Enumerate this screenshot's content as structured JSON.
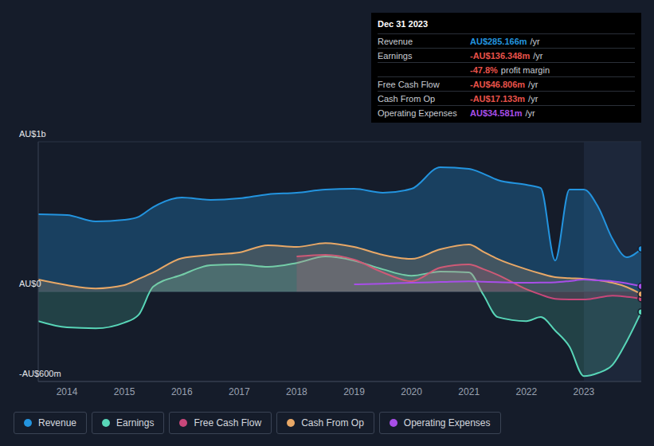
{
  "chart_data": {
    "type": "area",
    "x": [
      2013.5,
      2014,
      2014.5,
      2015,
      2015.25,
      2015.5,
      2016,
      2016.5,
      2017,
      2017.5,
      2018,
      2018.5,
      2019,
      2019.5,
      2020,
      2020.5,
      2021,
      2021.25,
      2021.5,
      2022,
      2022.25,
      2022.5,
      2022.75,
      2023,
      2023.25,
      2023.5,
      2023.75,
      2024
    ],
    "xlim": [
      2013.5,
      2024
    ],
    "xticks": [
      2014,
      2015,
      2016,
      2017,
      2018,
      2019,
      2020,
      2021,
      2022,
      2023
    ],
    "ylim": [
      -600,
      1000
    ],
    "yticks": [
      {
        "value": -600,
        "label": "-AU$600m"
      },
      {
        "value": 0,
        "label": "AU$0"
      },
      {
        "value": 1000,
        "label": "AU$1b"
      }
    ],
    "grid": true,
    "legend": "bottom",
    "shaded_x": [
      2023,
      2024
    ],
    "series": [
      {
        "name": "Revenue",
        "color": "#2394df",
        "type": "area",
        "values": [
          516,
          511,
          468,
          479,
          500,
          564,
          628,
          612,
          622,
          649,
          660,
          681,
          686,
          660,
          686,
          830,
          819,
          787,
          745,
          713,
          691,
          207,
          681,
          681,
          564,
          351,
          229,
          285
        ]
      },
      {
        "name": "Earnings",
        "color": "#58d6b8",
        "type": "area",
        "values": [
          -197,
          -239,
          -245,
          -207,
          -154,
          32,
          112,
          176,
          181,
          165,
          191,
          234,
          207,
          149,
          106,
          133,
          128,
          -21,
          -170,
          -197,
          -170,
          -260,
          -367,
          -564,
          -543,
          -489,
          -330,
          -136
        ]
      },
      {
        "name": "Free Cash Flow",
        "color": "#c8477a",
        "type": "area",
        "values": [
          null,
          null,
          null,
          null,
          null,
          null,
          null,
          null,
          null,
          null,
          234,
          245,
          213,
          128,
          69,
          160,
          181,
          150,
          112,
          16,
          -20,
          -48,
          -52,
          -53,
          -40,
          -27,
          -35,
          -47
        ]
      },
      {
        "name": "Cash From Op",
        "color": "#e8a867",
        "type": "area",
        "values": [
          80,
          43,
          21,
          43,
          85,
          128,
          223,
          245,
          261,
          309,
          298,
          324,
          298,
          245,
          218,
          282,
          314,
          266,
          218,
          149,
          120,
          96,
          90,
          85,
          75,
          59,
          30,
          -17
        ]
      },
      {
        "name": "Operating Expenses",
        "color": "#a84ee8",
        "type": "line",
        "values": [
          null,
          null,
          null,
          null,
          null,
          null,
          null,
          null,
          null,
          null,
          null,
          null,
          48,
          53,
          59,
          64,
          69,
          66,
          63,
          59,
          60,
          62,
          70,
          80,
          75,
          69,
          55,
          35
        ]
      }
    ],
    "tooltip": {
      "title": "Dec 31 2023",
      "rows": [
        {
          "label": "Revenue",
          "value": "AU$285.166m",
          "unit": "/yr"
        },
        {
          "label": "Earnings",
          "value": "-AU$136.348m",
          "unit": "/yr"
        },
        {
          "value": "-47.8%",
          "unit": "profit margin"
        },
        {
          "label": "Free Cash Flow",
          "value": "-AU$46.806m",
          "unit": "/yr"
        },
        {
          "label": "Cash From Op",
          "value": "-AU$17.133m",
          "unit": "/yr"
        },
        {
          "label": "Operating Expenses",
          "value": "AU$34.581m",
          "unit": "/yr"
        }
      ]
    }
  }
}
